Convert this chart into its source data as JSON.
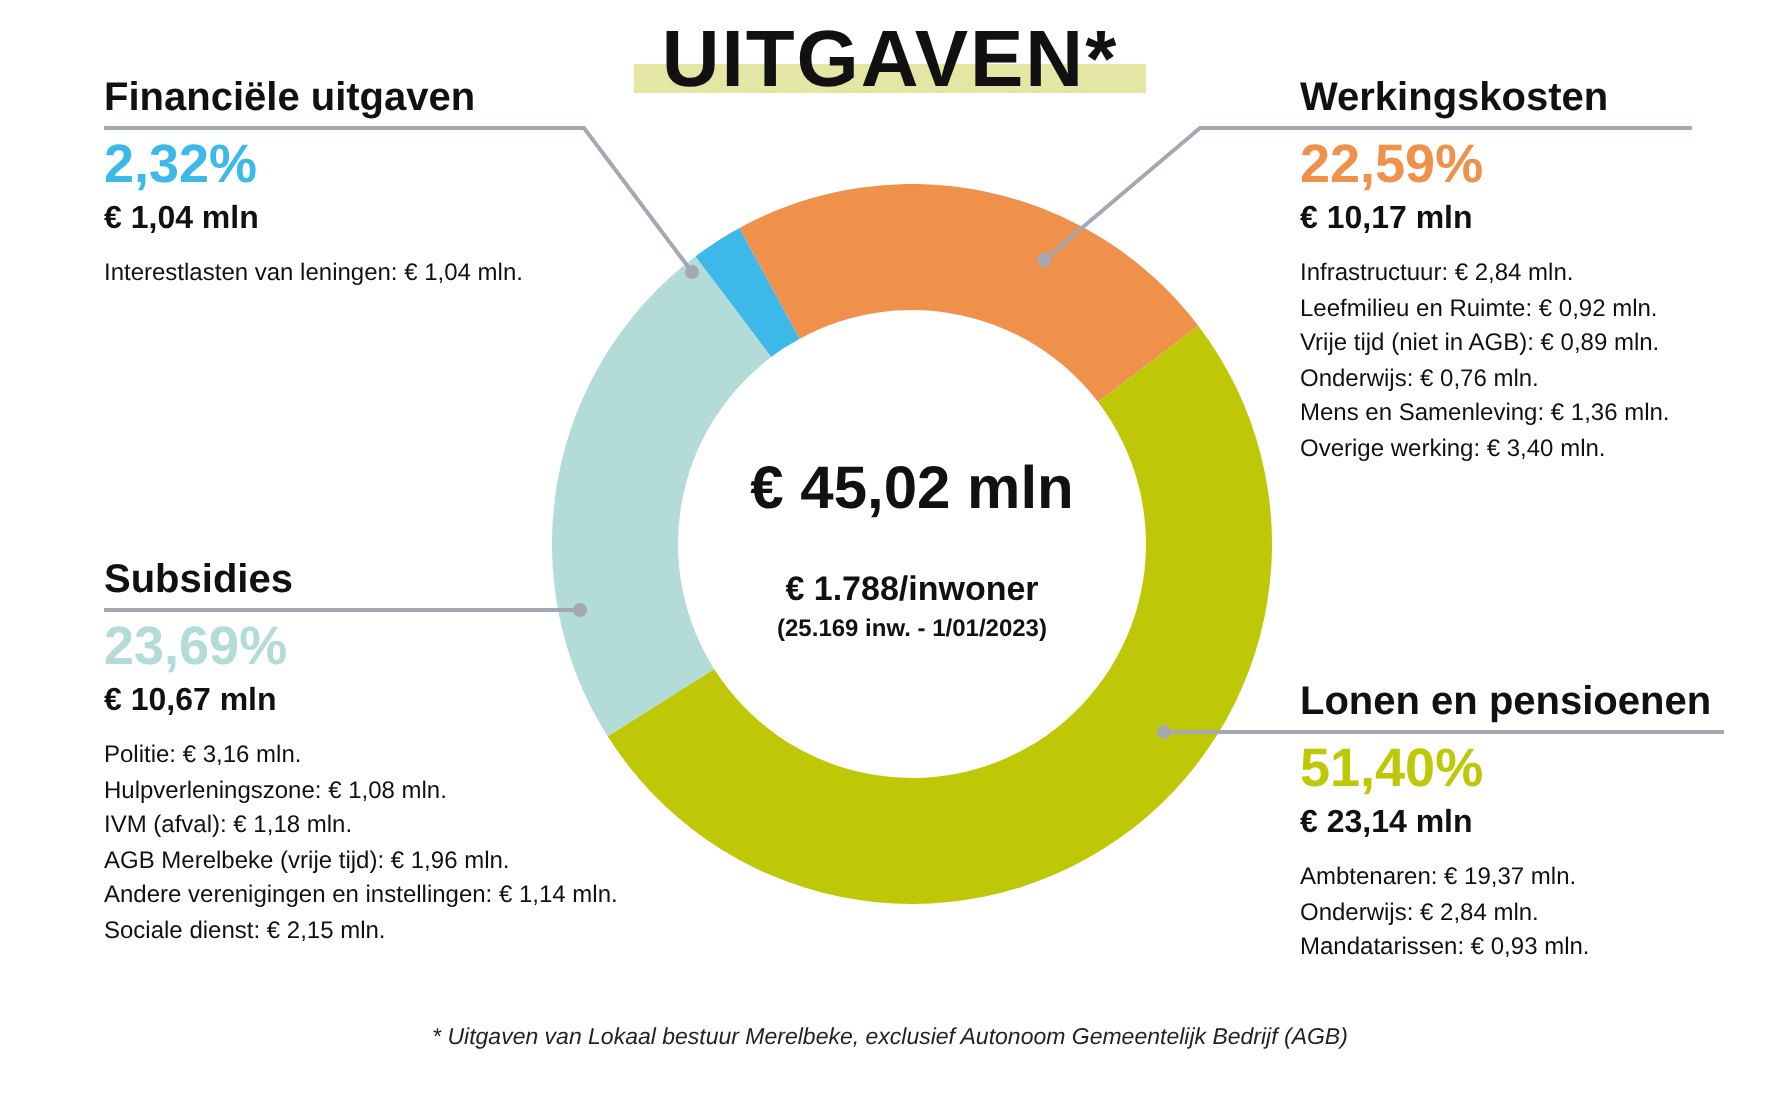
{
  "chart_data": {
    "type": "donut",
    "title": "UITGAVEN*",
    "categories": [
      "Financiële uitgaven",
      "Werkingskosten",
      "Lonen en pensioenen",
      "Subsidies"
    ],
    "values": [
      2.32,
      22.59,
      51.4,
      23.69
    ],
    "colors": [
      "#3db9e9",
      "#f0914b",
      "#bfc806",
      "#b3dbd8"
    ],
    "value_labels": [
      "2,32%",
      "22,59%",
      "51,40%",
      "23,69%"
    ],
    "legend": false,
    "annotations": [
      "€ 45,02 mln",
      "€ 1.788/inwoner",
      "(25.169 inw. - 1/01/2023)",
      {
        "text": "€ 1,04 mln",
        "x": "Financiële uitgaven"
      },
      {
        "text": "Interestlasten van leningen: € 1,04 mln.",
        "x": "Financiële uitgaven"
      },
      {
        "text": "€ 10,17 mln",
        "x": "Werkingskosten"
      },
      {
        "text": "Infrastructuur: € 2,84 mln.",
        "x": "Werkingskosten"
      },
      {
        "text": "Leefmilieu en Ruimte: € 0,92 mln.",
        "x": "Werkingskosten"
      },
      {
        "text": "Vrije tijd (niet in AGB): € 0,89 mln.",
        "x": "Werkingskosten"
      },
      {
        "text": "Onderwijs: € 0,76 mln.",
        "x": "Werkingskosten"
      },
      {
        "text": "Mens en Samenleving: € 1,36 mln.",
        "x": "Werkingskosten"
      },
      {
        "text": "Overige werking: € 3,40 mln.",
        "x": "Werkingskosten"
      },
      {
        "text": "€ 23,14 mln",
        "x": "Lonen en pensioenen"
      },
      {
        "text": "Ambtenaren: € 19,37 mln.",
        "x": "Lonen en pensioenen"
      },
      {
        "text": "Onderwijs: € 2,84 mln.",
        "x": "Lonen en pensioenen"
      },
      {
        "text": "Mandatarissen: € 0,93 mln.",
        "x": "Lonen en pensioenen"
      },
      {
        "text": "€ 10,67 mln",
        "x": "Subsidies"
      },
      {
        "text": "Politie: € 3,16 mln.",
        "x": "Subsidies"
      },
      {
        "text": "Hulpverleningszone: € 1,08 mln.",
        "x": "Subsidies"
      },
      {
        "text": "IVM (afval): € 1,18 mln.",
        "x": "Subsidies"
      },
      {
        "text": "AGB Merelbeke (vrije tijd): € 1,96 mln.",
        "x": "Subsidies"
      },
      {
        "text": "Andere verenigingen en instellingen: € 1,14 mln.",
        "x": "Subsidies"
      },
      {
        "text": "Sociale dienst: € 2,15 mln.",
        "x": "Subsidies"
      },
      "* Uitgaven van Lokaal bestuur Merelbeke, exclusief Autonoom Gemeentelijk Bedrijf (AGB)"
    ]
  }
}
